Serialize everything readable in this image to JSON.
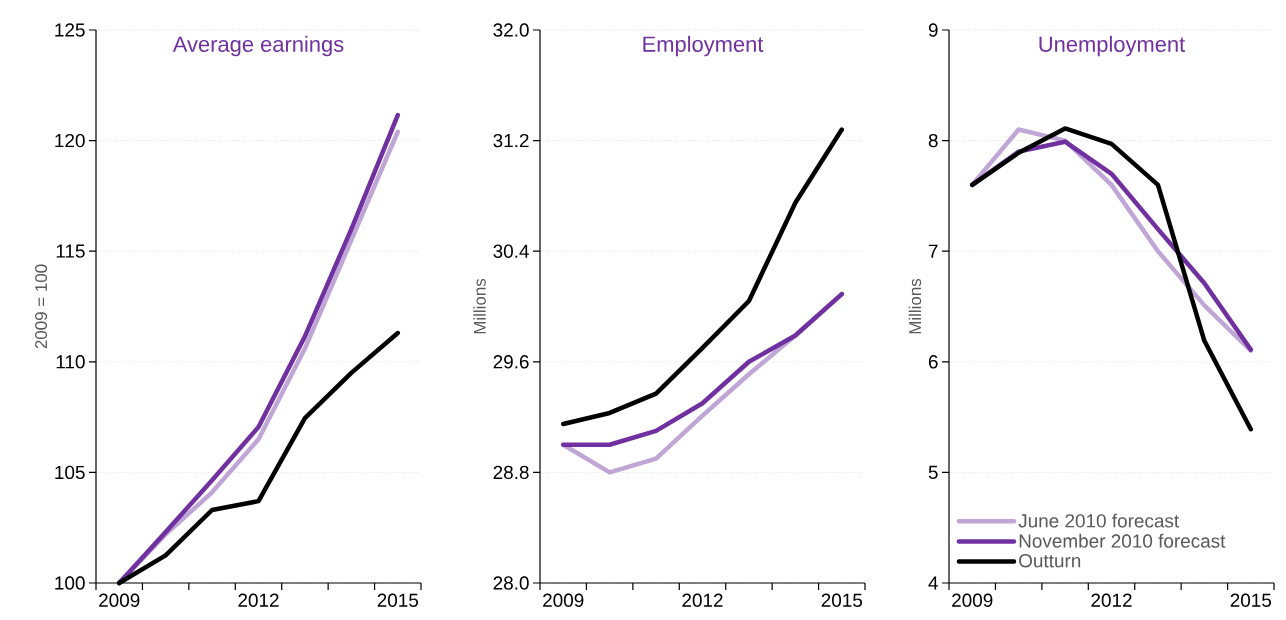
{
  "chart_data": [
    {
      "type": "line",
      "title": "Average earnings",
      "ylabel": "2009 = 100",
      "categories": [
        "2009",
        null,
        null,
        "2012",
        null,
        null,
        "2015"
      ],
      "ylim": [
        100,
        125
      ],
      "yticks": [
        100,
        105,
        110,
        115,
        120,
        125
      ],
      "grid": "y",
      "series": [
        {
          "color": "#c0a6d6",
          "values": [
            100,
            102.2,
            104.1,
            106.5,
            110.6,
            115.5,
            120.4
          ]
        },
        {
          "color": "#7030a0",
          "values": [
            100,
            102.3,
            104.65,
            107.05,
            111.15,
            116.0,
            121.15
          ]
        },
        {
          "color": "#000000",
          "values": [
            100,
            101.25,
            103.3,
            103.7,
            107.45,
            109.5,
            111.3
          ]
        }
      ]
    },
    {
      "type": "line",
      "title": "Employment",
      "ylabel": "Millions",
      "categories": [
        "2009",
        null,
        null,
        "2012",
        null,
        null,
        "2015"
      ],
      "ylim": [
        28,
        32
      ],
      "yticks": [
        {
          "value": 28,
          "label": "28.0"
        },
        28.8,
        29.6,
        30.4,
        31.2,
        {
          "value": 32,
          "label": "32.0"
        }
      ],
      "grid": "y",
      "series": [
        {
          "color": "#c0a6d6",
          "values": [
            29.0,
            28.8,
            28.9,
            29.21,
            29.51,
            29.79,
            30.09
          ]
        },
        {
          "color": "#7030a0",
          "values": [
            29.0,
            29.0,
            29.1,
            29.3,
            29.6,
            29.79,
            30.09
          ]
        },
        {
          "color": "#000000",
          "values": [
            29.15,
            29.23,
            29.37,
            29.7,
            30.04,
            30.75,
            31.28
          ]
        }
      ]
    },
    {
      "type": "line",
      "title": "Unemployment",
      "ylabel": "Millions",
      "categories": [
        "2009",
        null,
        null,
        "2012",
        null,
        null,
        "2015"
      ],
      "ylim": [
        4,
        9
      ],
      "yticks": [
        4,
        5,
        6,
        7,
        8,
        9
      ],
      "grid": "y",
      "legend": "bottom left",
      "series": [
        {
          "name": "June 2010 forecast",
          "color": "#c0a6d6",
          "values": [
            7.6,
            8.1,
            8.0,
            7.6,
            7.0,
            6.51,
            6.1
          ]
        },
        {
          "name": "November 2010 forecast",
          "color": "#7030a0",
          "values": [
            7.6,
            7.9,
            7.99,
            7.7,
            7.2,
            6.71,
            6.11
          ]
        },
        {
          "name": "Outturn",
          "color": "#000000",
          "values": [
            7.6,
            7.89,
            8.11,
            7.97,
            7.6,
            6.19,
            5.39
          ]
        }
      ]
    }
  ]
}
